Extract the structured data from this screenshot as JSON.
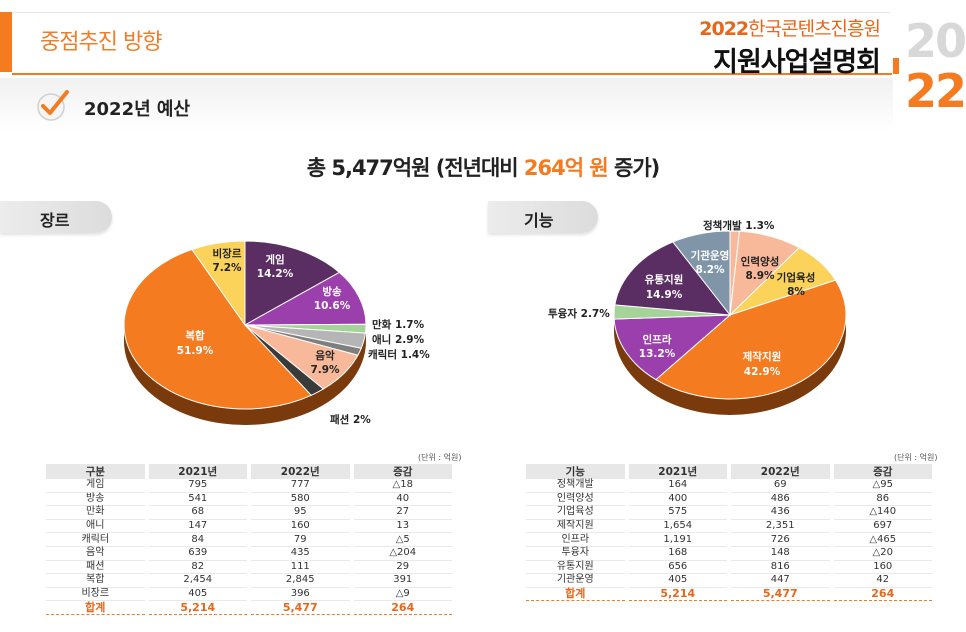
{
  "header": {
    "section_title": "중점추진 방향",
    "brand_line1_year": "2022",
    "brand_line1_org": "한국콘텐츠진흥원",
    "brand_line2": "지원사업설명회",
    "year_top": "20",
    "year_bottom": "22"
  },
  "subheader": {
    "title": "2022년 예산",
    "icon": "check-icon"
  },
  "total": {
    "prefix": "총 5,477억원 (전년대비 ",
    "highlight": "264억 원",
    "suffix": " 증가)"
  },
  "colors": {
    "accent": "#f47b20",
    "game": "#5a2d63",
    "broadcast": "#9b3fad",
    "manhwa": "#a6d399",
    "anime": "#b5b5b5",
    "character": "#7f7f7f",
    "music": "#f8b89a",
    "fashion": "#3a3a3a",
    "composite": "#f47b20",
    "nongenre": "#fbd25a",
    "policy": "#f8b89a",
    "hr": "#f8b89a",
    "corp": "#fbd25a",
    "production": "#f47b20",
    "infra": "#9b3fad",
    "invest": "#a6d399",
    "distribution": "#5a2d63",
    "operation": "#8096a8"
  },
  "genre": {
    "section_label": "장르",
    "unit": "(단위 : 억원)",
    "labels": {
      "game": "게임",
      "game_pct": "14.2%",
      "broadcast": "방송",
      "broadcast_pct": "10.6%",
      "manhwa": "만화 1.7%",
      "anime": "애니 2.9%",
      "character": "캐릭터 1.4%",
      "music": "음악",
      "music_pct": "7.9%",
      "fashion": "패션 2%",
      "composite": "복합",
      "composite_pct": "51.9%",
      "nongenre": "비장르",
      "nongenre_pct": "7.2%"
    },
    "table": {
      "headers": [
        "구분",
        "2021년",
        "2022년",
        "증감"
      ],
      "rows": [
        [
          "게임",
          "795",
          "777",
          "△18"
        ],
        [
          "방송",
          "541",
          "580",
          "40"
        ],
        [
          "만화",
          "68",
          "95",
          "27"
        ],
        [
          "애니",
          "147",
          "160",
          "13"
        ],
        [
          "캐릭터",
          "84",
          "79",
          "△5"
        ],
        [
          "음악",
          "639",
          "435",
          "△204"
        ],
        [
          "패션",
          "82",
          "111",
          "29"
        ],
        [
          "복합",
          "2,454",
          "2,845",
          "391"
        ],
        [
          "비장르",
          "405",
          "396",
          "△9"
        ]
      ],
      "total": [
        "합계",
        "5,214",
        "5,477",
        "264"
      ]
    }
  },
  "function": {
    "section_label": "기능",
    "unit": "(단위 : 억원)",
    "labels": {
      "policy": "정책개발 1.3%",
      "hr": "인력양성",
      "hr_pct": "8.9%",
      "corp": "기업육성",
      "corp_pct": "8%",
      "production": "제작지원",
      "production_pct": "42.9%",
      "infra": "인프라",
      "infra_pct": "13.2%",
      "invest": "투융자 2.7%",
      "distribution": "유통지원",
      "distribution_pct": "14.9%",
      "operation": "기관운영",
      "operation_pct": "8.2%"
    },
    "table": {
      "headers": [
        "기능",
        "2021년",
        "2022년",
        "증감"
      ],
      "rows": [
        [
          "정책개발",
          "164",
          "69",
          "△95"
        ],
        [
          "인력양성",
          "400",
          "486",
          "86"
        ],
        [
          "기업육성",
          "575",
          "436",
          "△140"
        ],
        [
          "제작지원",
          "1,654",
          "2,351",
          "697"
        ],
        [
          "인프라",
          "1,191",
          "726",
          "△465"
        ],
        [
          "투융자",
          "168",
          "148",
          "△20"
        ],
        [
          "유통지원",
          "656",
          "816",
          "160"
        ],
        [
          "기관운영",
          "405",
          "447",
          "42"
        ]
      ],
      "total": [
        "합계",
        "5,214",
        "5,477",
        "264"
      ]
    }
  },
  "chart_data": [
    {
      "type": "pie",
      "title": "장르",
      "categories": [
        "게임",
        "방송",
        "만화",
        "애니",
        "캐릭터",
        "음악",
        "패션",
        "복합",
        "비장르"
      ],
      "values": [
        14.2,
        10.6,
        1.7,
        2.9,
        1.4,
        7.9,
        2.0,
        51.9,
        7.2
      ],
      "unit": "%"
    },
    {
      "type": "pie",
      "title": "기능",
      "categories": [
        "정책개발",
        "인력양성",
        "기업육성",
        "제작지원",
        "인프라",
        "투융자",
        "유통지원",
        "기관운영"
      ],
      "values": [
        1.3,
        8.9,
        8.0,
        42.9,
        13.2,
        2.7,
        14.9,
        8.2
      ],
      "unit": "%"
    }
  ]
}
